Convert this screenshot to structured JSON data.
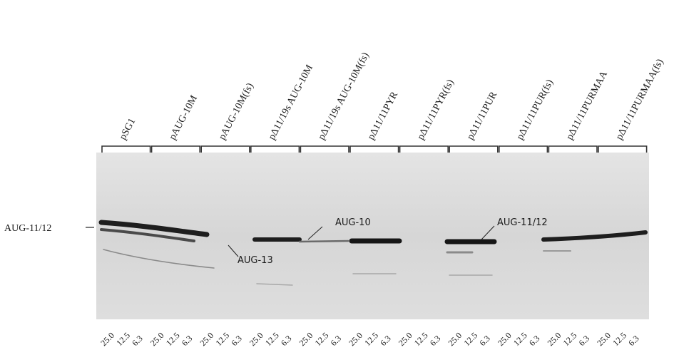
{
  "lane_groups": [
    {
      "label": "pSG1",
      "lanes": [
        "25.0",
        "12.5",
        "6.3"
      ]
    },
    {
      "label": "pAUG-10M",
      "lanes": [
        "25.0",
        "12.5",
        "6.3"
      ]
    },
    {
      "label": "pAUG-10M(fs)",
      "lanes": [
        "25.0",
        "12.5",
        "6.3"
      ]
    },
    {
      "label": "pΔ11/19s AUG-10M",
      "lanes": [
        "25.0",
        "12.5",
        "6.3"
      ]
    },
    {
      "label": "pΔ11/19s AUG-10M(fs)",
      "lanes": [
        "25.0",
        "12.5",
        "6.3"
      ]
    },
    {
      "label": "pΔ11/11PYR",
      "lanes": [
        "25.0",
        "12.5",
        "6.3"
      ]
    },
    {
      "label": "pΔ11/11PYR(fs)",
      "lanes": [
        "25.0",
        "12.5",
        "6.3"
      ]
    },
    {
      "label": "pΔ11/11PUR",
      "lanes": [
        "25.0",
        "12.5",
        "6.3"
      ]
    },
    {
      "label": "pΔ11/11PUR(fs)",
      "lanes": [
        "25.0",
        "12.5",
        "6.3"
      ]
    },
    {
      "label": "pΔ11/11PURMAA",
      "lanes": [
        "25.0",
        "12.5",
        "6.3"
      ]
    },
    {
      "label": "pΔ11/11PURMAA(fs)",
      "lanes": [
        "25.0",
        "12.5",
        "6.3"
      ]
    }
  ],
  "side_marker": "AUG-11/12",
  "annotations": [
    "AUG-13",
    "AUG-10",
    "AUG-11/12"
  ]
}
